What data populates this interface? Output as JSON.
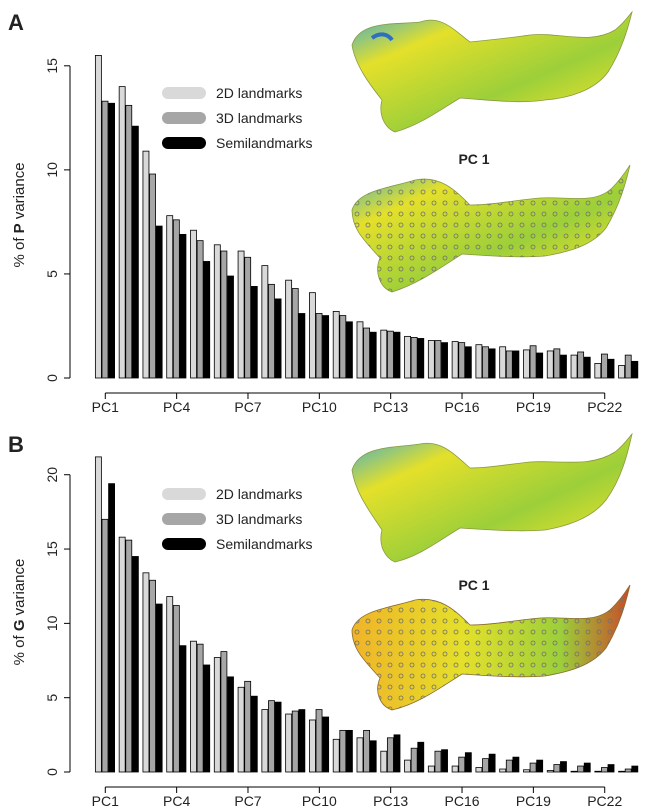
{
  "figure": {
    "colors": {
      "landmarks2d": "#d9d9d9",
      "landmarks3d": "#a6a6a6",
      "semilandmarks": "#000000",
      "bar_stroke": "#000000"
    },
    "mandible_colors": [
      "#e4e02a",
      "#9ccf3a",
      "#2e8bd0",
      "#3aa9d6",
      "#f0b428",
      "#c84c2a"
    ]
  },
  "chart_data": [
    {
      "panel": "A",
      "type": "bar",
      "ylabel": "% of P variance",
      "ylabel_parts": [
        "% of ",
        "P",
        " variance"
      ],
      "ylim": [
        0,
        16
      ],
      "yticks": [
        0,
        5,
        10,
        15
      ],
      "categories": [
        "PC1",
        "PC2",
        "PC3",
        "PC4",
        "PC5",
        "PC6",
        "PC7",
        "PC8",
        "PC9",
        "PC10",
        "PC11",
        "PC12",
        "PC13",
        "PC14",
        "PC15",
        "PC16",
        "PC17",
        "PC18",
        "PC19",
        "PC20",
        "PC21",
        "PC22",
        "PC23"
      ],
      "xtick_labels": [
        "PC1",
        "PC4",
        "PC7",
        "PC10",
        "PC13",
        "PC16",
        "PC19",
        "PC22"
      ],
      "legend": [
        "2D landmarks",
        "3D landmarks",
        "Semilandmarks"
      ],
      "series": [
        {
          "name": "2D landmarks",
          "values": [
            15.5,
            14.0,
            10.9,
            7.8,
            7.1,
            6.4,
            6.1,
            5.4,
            4.7,
            4.1,
            3.2,
            2.7,
            2.3,
            2.0,
            1.8,
            1.75,
            1.6,
            1.5,
            1.35,
            1.3,
            1.1,
            0.7,
            0.6
          ]
        },
        {
          "name": "3D landmarks",
          "values": [
            13.3,
            13.1,
            9.8,
            7.6,
            6.6,
            6.1,
            5.8,
            4.5,
            4.3,
            3.1,
            3.0,
            2.4,
            2.25,
            1.95,
            1.8,
            1.7,
            1.5,
            1.3,
            1.55,
            1.4,
            1.25,
            1.15,
            1.1
          ]
        },
        {
          "name": "Semilandmarks",
          "values": [
            13.2,
            12.1,
            7.3,
            6.9,
            5.6,
            4.9,
            4.4,
            3.8,
            3.1,
            3.0,
            2.7,
            2.2,
            2.2,
            1.9,
            1.7,
            1.5,
            1.4,
            1.3,
            1.2,
            1.1,
            1.0,
            0.9,
            0.8
          ]
        }
      ],
      "inset_label": "PC 1"
    },
    {
      "panel": "B",
      "type": "bar",
      "ylabel": "% of G variance",
      "ylabel_parts": [
        "% of ",
        "G",
        " variance"
      ],
      "ylim": [
        0,
        22
      ],
      "yticks": [
        0,
        5,
        10,
        15,
        20
      ],
      "categories": [
        "PC1",
        "PC2",
        "PC3",
        "PC4",
        "PC5",
        "PC6",
        "PC7",
        "PC8",
        "PC9",
        "PC10",
        "PC11",
        "PC12",
        "PC13",
        "PC14",
        "PC15",
        "PC16",
        "PC17",
        "PC18",
        "PC19",
        "PC20",
        "PC21",
        "PC22",
        "PC23"
      ],
      "xtick_labels": [
        "PC1",
        "PC4",
        "PC7",
        "PC10",
        "PC13",
        "PC16",
        "PC19",
        "PC22"
      ],
      "legend": [
        "2D landmarks",
        "3D landmarks",
        "Semilandmarks"
      ],
      "series": [
        {
          "name": "2D landmarks",
          "values": [
            21.2,
            15.8,
            13.4,
            11.8,
            8.8,
            7.7,
            5.7,
            4.2,
            3.9,
            3.5,
            2.2,
            2.3,
            1.4,
            0.8,
            0.4,
            0.4,
            0.3,
            0.2,
            0.15,
            0.1,
            0.05,
            0.05,
            0.05
          ]
        },
        {
          "name": "3D landmarks",
          "values": [
            17.0,
            15.6,
            12.9,
            11.2,
            8.6,
            8.1,
            6.1,
            4.8,
            4.1,
            4.2,
            2.8,
            2.8,
            2.3,
            1.6,
            1.4,
            1.0,
            0.9,
            0.8,
            0.6,
            0.5,
            0.4,
            0.3,
            0.2
          ]
        },
        {
          "name": "Semilandmarks",
          "values": [
            19.4,
            14.5,
            11.3,
            8.5,
            7.2,
            6.4,
            5.1,
            4.7,
            4.2,
            3.7,
            2.8,
            2.1,
            2.5,
            2.0,
            1.5,
            1.3,
            1.2,
            1.0,
            0.8,
            0.7,
            0.6,
            0.5,
            0.4
          ]
        }
      ],
      "inset_label": "PC 1"
    }
  ]
}
